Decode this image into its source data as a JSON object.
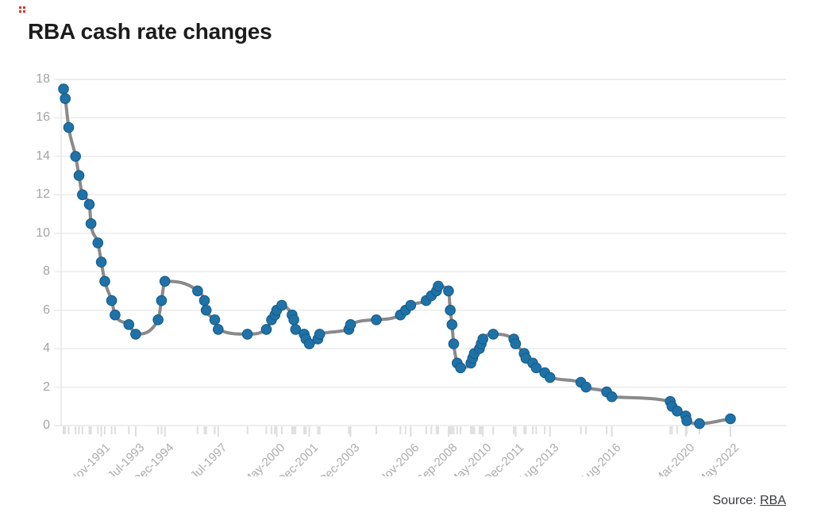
{
  "header": {
    "title": "RBA cash rate changes"
  },
  "source": {
    "prefix": "Source: ",
    "link_label": "RBA"
  },
  "colors": {
    "point": "#1f72a8",
    "point_edge": "#155a85",
    "line": "#8a8a8a",
    "grid": "#e9e9e9",
    "axis": "#e4e4e4",
    "rug_tick": "#dedede",
    "marker_red": "#e0362b"
  },
  "chart_data": {
    "type": "line",
    "title": "RBA cash rate changes",
    "xlabel": "",
    "ylabel": "",
    "ylim": [
      0,
      18
    ],
    "y_ticks": [
      0,
      2,
      4,
      6,
      8,
      10,
      12,
      14,
      16,
      18
    ],
    "grid": "horizontal",
    "legend": "none",
    "source": "RBA",
    "x": [
      "Jan-1990",
      "Feb-1990",
      "Apr-1990",
      "Aug-1990",
      "Oct-1990",
      "Dec-1990",
      "Apr-1991",
      "May-1991",
      "Sep-1991",
      "Nov-1991",
      "Jan-1992",
      "May-1992",
      "Jul-1992",
      "Mar-1993",
      "Jul-1993",
      "Aug-1994",
      "Oct-1994",
      "Dec-1994",
      "Jul-1996",
      "Nov-1996",
      "Dec-1996",
      "May-1997",
      "Jul-1997",
      "Dec-1998",
      "Nov-1999",
      "Feb-2000",
      "Apr-2000",
      "May-2000",
      "Aug-2000",
      "Feb-2001",
      "Mar-2001",
      "Apr-2001",
      "Sep-2001",
      "Oct-2001",
      "Dec-2001",
      "May-2002",
      "Jun-2002",
      "Nov-2003",
      "Dec-2003",
      "Mar-2005",
      "May-2006",
      "Aug-2006",
      "Nov-2006",
      "Aug-2007",
      "Nov-2007",
      "Feb-2008",
      "Mar-2008",
      "Sep-2008",
      "Oct-2008",
      "Nov-2008",
      "Dec-2008",
      "Feb-2009",
      "Apr-2009",
      "Oct-2009",
      "Nov-2009",
      "Dec-2009",
      "Mar-2010",
      "Apr-2010",
      "May-2010",
      "Nov-2010",
      "Nov-2011",
      "Dec-2011",
      "May-2012",
      "Jun-2012",
      "Oct-2012",
      "Dec-2012",
      "May-2013",
      "Aug-2013",
      "Feb-2015",
      "May-2015",
      "May-2016",
      "Aug-2016",
      "Jun-2019",
      "Jul-2019",
      "Oct-2019",
      "Mar-2020",
      "Mar-2020",
      "Nov-2020",
      "May-2022"
    ],
    "values": [
      17.5,
      17,
      15.5,
      14,
      13,
      12,
      11.5,
      10.5,
      9.5,
      8.5,
      7.5,
      6.5,
      5.75,
      5.25,
      4.75,
      5.5,
      6.5,
      7.5,
      7,
      6.5,
      6,
      5.5,
      5,
      4.75,
      5,
      5.5,
      5.75,
      6,
      6.25,
      5.75,
      5.5,
      5,
      4.75,
      4.5,
      4.25,
      4.5,
      4.75,
      5,
      5.25,
      5.5,
      5.75,
      6,
      6.25,
      6.5,
      6.75,
      7,
      7.25,
      7,
      6,
      5.25,
      4.25,
      3.25,
      3,
      3.25,
      3.5,
      3.75,
      4,
      4.25,
      4.5,
      4.75,
      4.5,
      4.25,
      3.75,
      3.5,
      3.25,
      3,
      2.75,
      2.5,
      2.25,
      2,
      1.75,
      1.5,
      1.25,
      1,
      0.75,
      0.5,
      0.25,
      0.1,
      0.35
    ],
    "x_tick_indices": [
      9,
      14,
      17,
      22,
      27,
      34,
      38,
      42,
      47,
      58,
      61,
      67,
      71,
      75,
      78
    ]
  }
}
